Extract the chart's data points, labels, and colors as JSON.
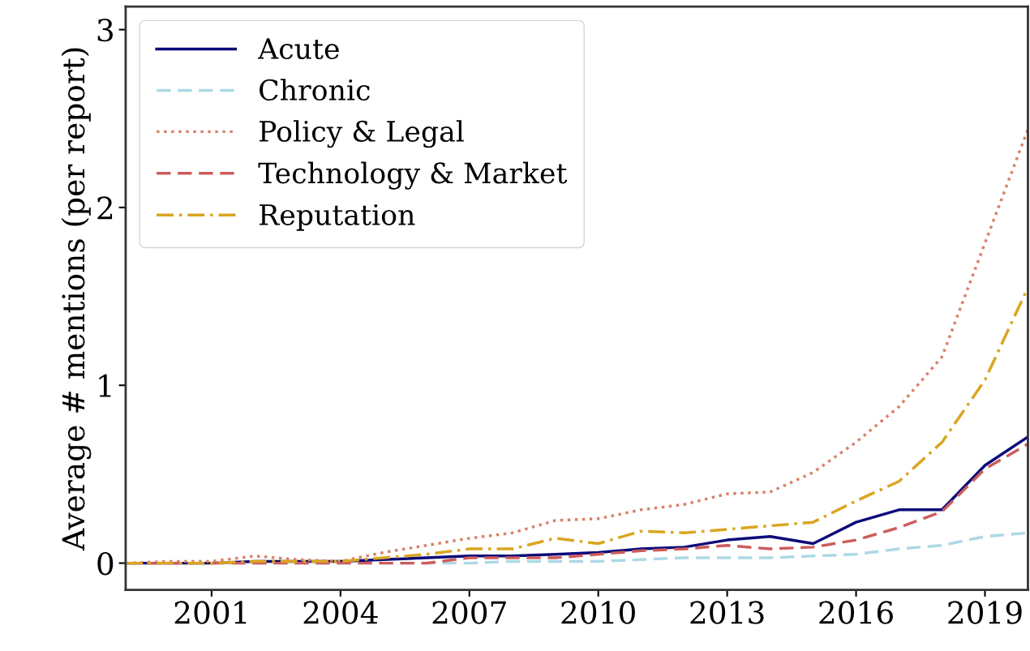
{
  "chart_data": {
    "type": "line",
    "ylabel": "Average # mentions (per report)",
    "x": [
      1999,
      2000,
      2001,
      2002,
      2003,
      2004,
      2005,
      2006,
      2007,
      2008,
      2009,
      2010,
      2011,
      2012,
      2013,
      2014,
      2015,
      2016,
      2017,
      2018,
      2019,
      2020
    ],
    "series": [
      {
        "name": "Acute",
        "color": "#0b0b7a",
        "line_style": "solid",
        "values": [
          0,
          0,
          0,
          0.01,
          0.01,
          0.01,
          0.02,
          0.03,
          0.04,
          0.04,
          0.05,
          0.06,
          0.08,
          0.09,
          0.13,
          0.15,
          0.11,
          0.23,
          0.3,
          0.3,
          0.55,
          0.71
        ]
      },
      {
        "name": "Chronic",
        "color": "#add8e6",
        "line_style": "dashed",
        "values": [
          0,
          0,
          0,
          0,
          0,
          0,
          0,
          0,
          0,
          0.01,
          0.01,
          0.01,
          0.02,
          0.03,
          0.03,
          0.03,
          0.04,
          0.05,
          0.08,
          0.1,
          0.15,
          0.17
        ]
      },
      {
        "name": "Policy & Legal",
        "color": "#d9826b",
        "line_style": "dotted",
        "values": [
          0,
          0.01,
          0.01,
          0.04,
          0.02,
          0.01,
          0.06,
          0.1,
          0.14,
          0.17,
          0.24,
          0.25,
          0.3,
          0.33,
          0.39,
          0.4,
          0.51,
          0.68,
          0.88,
          1.16,
          1.8,
          2.44
        ]
      },
      {
        "name": "Technology & Market",
        "color": "#cd5c5c",
        "line_style": "dashed",
        "values": [
          0,
          0,
          0,
          0,
          0,
          0,
          0,
          0,
          0.03,
          0.03,
          0.03,
          0.05,
          0.07,
          0.08,
          0.1,
          0.08,
          0.09,
          0.13,
          0.2,
          0.29,
          0.53,
          0.67
        ]
      },
      {
        "name": "Reputation",
        "color": "#daa520",
        "line_style": "dashdot",
        "values": [
          0,
          0,
          0,
          0.01,
          0.01,
          0.01,
          0.03,
          0.05,
          0.08,
          0.08,
          0.14,
          0.11,
          0.18,
          0.17,
          0.19,
          0.21,
          0.23,
          0.35,
          0.46,
          0.68,
          1.03,
          1.55
        ]
      }
    ],
    "xlim": [
      1999,
      2020
    ],
    "ylim": [
      -0.15,
      3.13
    ],
    "xticks": [
      2001,
      2004,
      2007,
      2010,
      2013,
      2016,
      2019
    ],
    "yticks": [
      0,
      1,
      2,
      3
    ],
    "legend": "top left",
    "grid": false
  }
}
